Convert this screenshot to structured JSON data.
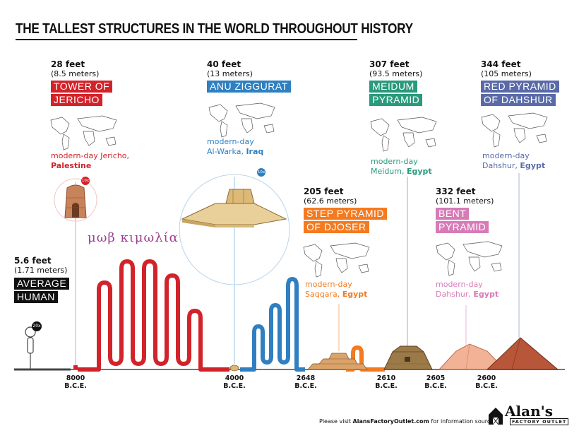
{
  "title": "THE TALLEST STRUCTURES IN THE WORLD THROUGHOUT HISTORY",
  "colors": {
    "jericho": "#d2232a",
    "anu": "#2f7fc1",
    "djoser": "#f47a20",
    "meidum": "#2a9a7c",
    "bent": "#d77bb7",
    "red": "#5a6aa8",
    "human": "#111111",
    "greek": "#9b3f8f"
  },
  "human": {
    "height_ft": "5.6 feet",
    "height_m": "(1.71 meters)",
    "label": [
      "AVERAGE",
      "HUMAN"
    ],
    "scale_badge": "20x"
  },
  "structures": [
    {
      "id": "jericho",
      "height_ft": "28 feet",
      "height_m": "(8.5 meters)",
      "name": [
        "TOWER OF",
        "JERICHO"
      ],
      "loc_prefix": "modern-day Jericho,",
      "loc_country": "Palestine",
      "scale_badge": "10x",
      "date": [
        "8000",
        "B.C.E."
      ]
    },
    {
      "id": "anu",
      "height_ft": "40 feet",
      "height_m": "(13 meters)",
      "name": [
        "ANU ZIGGURAT"
      ],
      "loc_prefix": "modern-day",
      "loc_place": "Al-Warka,",
      "loc_country": "Iraq",
      "scale_badge": "10x",
      "date": [
        "4000",
        "B.C.E."
      ]
    },
    {
      "id": "djoser",
      "height_ft": "205 feet",
      "height_m": "(62.6 meters)",
      "name": [
        "STEP PYRAMID",
        "OF DJOSER"
      ],
      "loc_prefix": "modern-day",
      "loc_place": "Saqqara,",
      "loc_country": "Egypt",
      "date": [
        "2648",
        "B.C.E."
      ]
    },
    {
      "id": "meidum",
      "height_ft": "307 feet",
      "height_m": "(93.5 meters)",
      "name": [
        "MEIDUM",
        "PYRAMID"
      ],
      "loc_prefix": "modern-day",
      "loc_place": "Meidum,",
      "loc_country": "Egypt",
      "date": [
        "2610",
        "B.C.E."
      ]
    },
    {
      "id": "bent",
      "height_ft": "332 feet",
      "height_m": "(101.1 meters)",
      "name": [
        "BENT",
        "PYRAMID"
      ],
      "loc_prefix": "modern-day",
      "loc_place": "Dahshur,",
      "loc_country": "Egypt",
      "date": [
        "2605",
        "B.C.E."
      ]
    },
    {
      "id": "red",
      "height_ft": "344 feet",
      "height_m": "(105 meters)",
      "name": [
        "RED PYRAMID",
        "OF DAHSHUR"
      ],
      "loc_prefix": "modern-day",
      "loc_place": "Dahshur,",
      "loc_country": "Egypt",
      "date": [
        "2600",
        "B.C.E."
      ]
    }
  ],
  "greek_text": "μωβ κιμωλία",
  "footer": {
    "prefix": "Please visit ",
    "site": "AlansFactoryOutlet.com",
    "suffix": " for information sources."
  },
  "logo": {
    "name": "Alan's",
    "sub": "FACTORY OUTLET"
  }
}
